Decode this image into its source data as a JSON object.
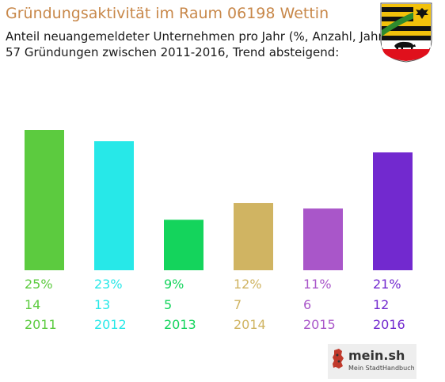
{
  "header": {
    "title": "Gründungsaktivität im Raum 06198 Wettin",
    "subtitle_line1": "Anteil neuangemeldeter Unternehmen pro Jahr (%, Anzahl, Jahr)",
    "subtitle_line2": "57 Gründungen zwischen 2011-2016, Trend absteigend:"
  },
  "brand": {
    "name": "mein.sh",
    "tagline": "Mein StadtHandbuch"
  },
  "crest": {
    "icon": "saxony-anhalt-coat-of-arms-icon"
  },
  "chart_data": {
    "type": "bar",
    "categories": [
      "2011",
      "2012",
      "2013",
      "2014",
      "2015",
      "2016"
    ],
    "percent_labels": [
      "25%",
      "23%",
      "9%",
      "12%",
      "11%",
      "21%"
    ],
    "counts": [
      "14",
      "13",
      "5",
      "7",
      "6",
      "12"
    ],
    "values": [
      25,
      23,
      9,
      12,
      11,
      21
    ],
    "colors": [
      "#5ccb3f",
      "#27e8e8",
      "#14d45c",
      "#d0b462",
      "#a956c9",
      "#7229cf"
    ],
    "grid": false,
    "legend": "none"
  }
}
